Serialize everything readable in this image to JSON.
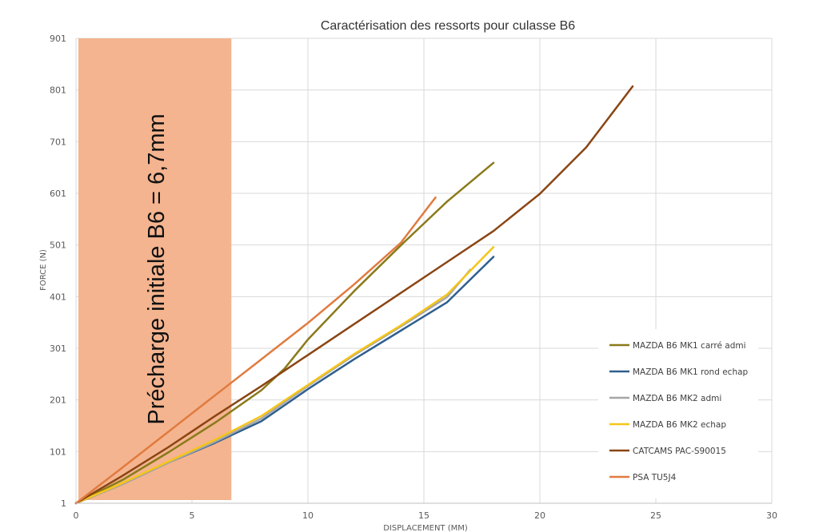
{
  "chart_data": {
    "type": "line",
    "title": "Caractérisation des ressorts pour culasse B6",
    "xlabel": "DISPLACEMENT (MM)",
    "ylabel": "FORCE (N)",
    "xlim": [
      0,
      30
    ],
    "ylim": [
      1,
      901
    ],
    "x_ticks": [
      "0",
      "5",
      "10",
      "15",
      "20",
      "25",
      "30"
    ],
    "y_ticks": [
      "1",
      "101",
      "201",
      "301",
      "401",
      "501",
      "601",
      "701",
      "801",
      "901"
    ],
    "grid": true,
    "legend_position": "right",
    "shaded_region": {
      "x_from": 0,
      "x_to": 6.7,
      "label": "Précharge initiale B6 = 6,7mm",
      "color": "#f4b48f"
    },
    "series": [
      {
        "name": "MAZDA B6 MK1 carré admi",
        "color": "#8a7a1a",
        "points": [
          [
            0,
            1
          ],
          [
            2,
            46
          ],
          [
            4,
            100
          ],
          [
            6,
            157
          ],
          [
            8,
            220
          ],
          [
            9,
            262
          ],
          [
            10,
            318
          ],
          [
            12,
            412
          ],
          [
            14,
            500
          ],
          [
            16,
            585
          ],
          [
            18,
            660
          ]
        ]
      },
      {
        "name": "MAZDA B6 MK1 rond echap",
        "color": "#2e5f8e",
        "points": [
          [
            0,
            1
          ],
          [
            2,
            38
          ],
          [
            4,
            80
          ],
          [
            6,
            118
          ],
          [
            8,
            160
          ],
          [
            10,
            222
          ],
          [
            12,
            280
          ],
          [
            14,
            335
          ],
          [
            16,
            390
          ],
          [
            18,
            478
          ]
        ]
      },
      {
        "name": "MAZDA B6 MK2 admi",
        "color": "#a6a6a6",
        "points": [
          [
            0,
            1
          ],
          [
            2,
            38
          ],
          [
            4,
            80
          ],
          [
            6,
            120
          ],
          [
            8,
            165
          ],
          [
            10,
            228
          ],
          [
            12,
            288
          ],
          [
            14,
            343
          ],
          [
            16,
            400
          ],
          [
            17,
            453
          ]
        ]
      },
      {
        "name": "MAZDA B6 MK2 echap",
        "color": "#f5c518",
        "points": [
          [
            0,
            1
          ],
          [
            2,
            40
          ],
          [
            4,
            82
          ],
          [
            6,
            124
          ],
          [
            8,
            170
          ],
          [
            10,
            230
          ],
          [
            12,
            290
          ],
          [
            14,
            345
          ],
          [
            16,
            405
          ],
          [
            18,
            497
          ]
        ]
      },
      {
        "name": "CATCAMS PAC-S90015",
        "color": "#8b4513",
        "points": [
          [
            0,
            1
          ],
          [
            2,
            54
          ],
          [
            4,
            110
          ],
          [
            6,
            170
          ],
          [
            8,
            228
          ],
          [
            10,
            288
          ],
          [
            12,
            348
          ],
          [
            14,
            408
          ],
          [
            16,
            468
          ],
          [
            18,
            528
          ],
          [
            20,
            600
          ],
          [
            22,
            690
          ],
          [
            24,
            808
          ]
        ]
      },
      {
        "name": "PSA TU5J4",
        "color": "#e07b3f",
        "points": [
          [
            0,
            1
          ],
          [
            2,
            70
          ],
          [
            4,
            140
          ],
          [
            6,
            210
          ],
          [
            8,
            280
          ],
          [
            10,
            350
          ],
          [
            12,
            425
          ],
          [
            14,
            505
          ],
          [
            15.5,
            593
          ]
        ]
      }
    ]
  }
}
